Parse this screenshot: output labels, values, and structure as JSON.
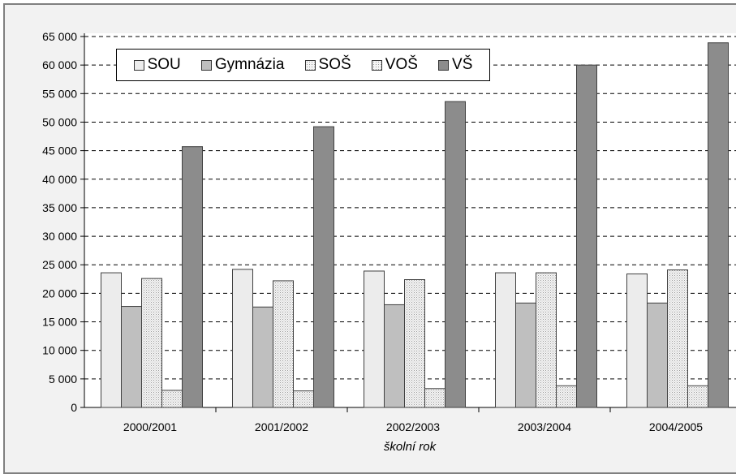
{
  "chart_data": {
    "type": "bar",
    "categories": [
      "2000/2001",
      "2001/2002",
      "2002/2003",
      "2003/2004",
      "2004/2005"
    ],
    "series": [
      {
        "name": "SOU",
        "values": [
          23600,
          24200,
          23900,
          23600,
          23400
        ],
        "color": "#ececec",
        "pattern": "solid"
      },
      {
        "name": "Gymnázia",
        "values": [
          17700,
          17600,
          18000,
          18300,
          18300
        ],
        "color": "#bfbfbf",
        "pattern": "solid"
      },
      {
        "name": "SOŠ",
        "values": [
          22600,
          22200,
          22400,
          23600,
          24100
        ],
        "color": "#dcdcdc",
        "pattern": "dotted"
      },
      {
        "name": "VOŠ",
        "values": [
          3000,
          2900,
          3300,
          3800,
          3800
        ],
        "color": "#e4e4e4",
        "pattern": "dotted"
      },
      {
        "name": "VŠ",
        "values": [
          45700,
          49200,
          53600,
          60000,
          63900
        ],
        "color": "#8c8c8c",
        "pattern": "solid"
      }
    ],
    "title": "",
    "xlabel": "školní rok",
    "ylabel": "",
    "ylim": [
      0,
      65000
    ],
    "yticks": [
      "0",
      "5 000",
      "10 000",
      "15 000",
      "20 000",
      "25 000",
      "30 000",
      "35 000",
      "40 000",
      "45 000",
      "50 000",
      "55 000",
      "60 000",
      "65 000"
    ],
    "grid": true,
    "legend_position": "top-left"
  }
}
